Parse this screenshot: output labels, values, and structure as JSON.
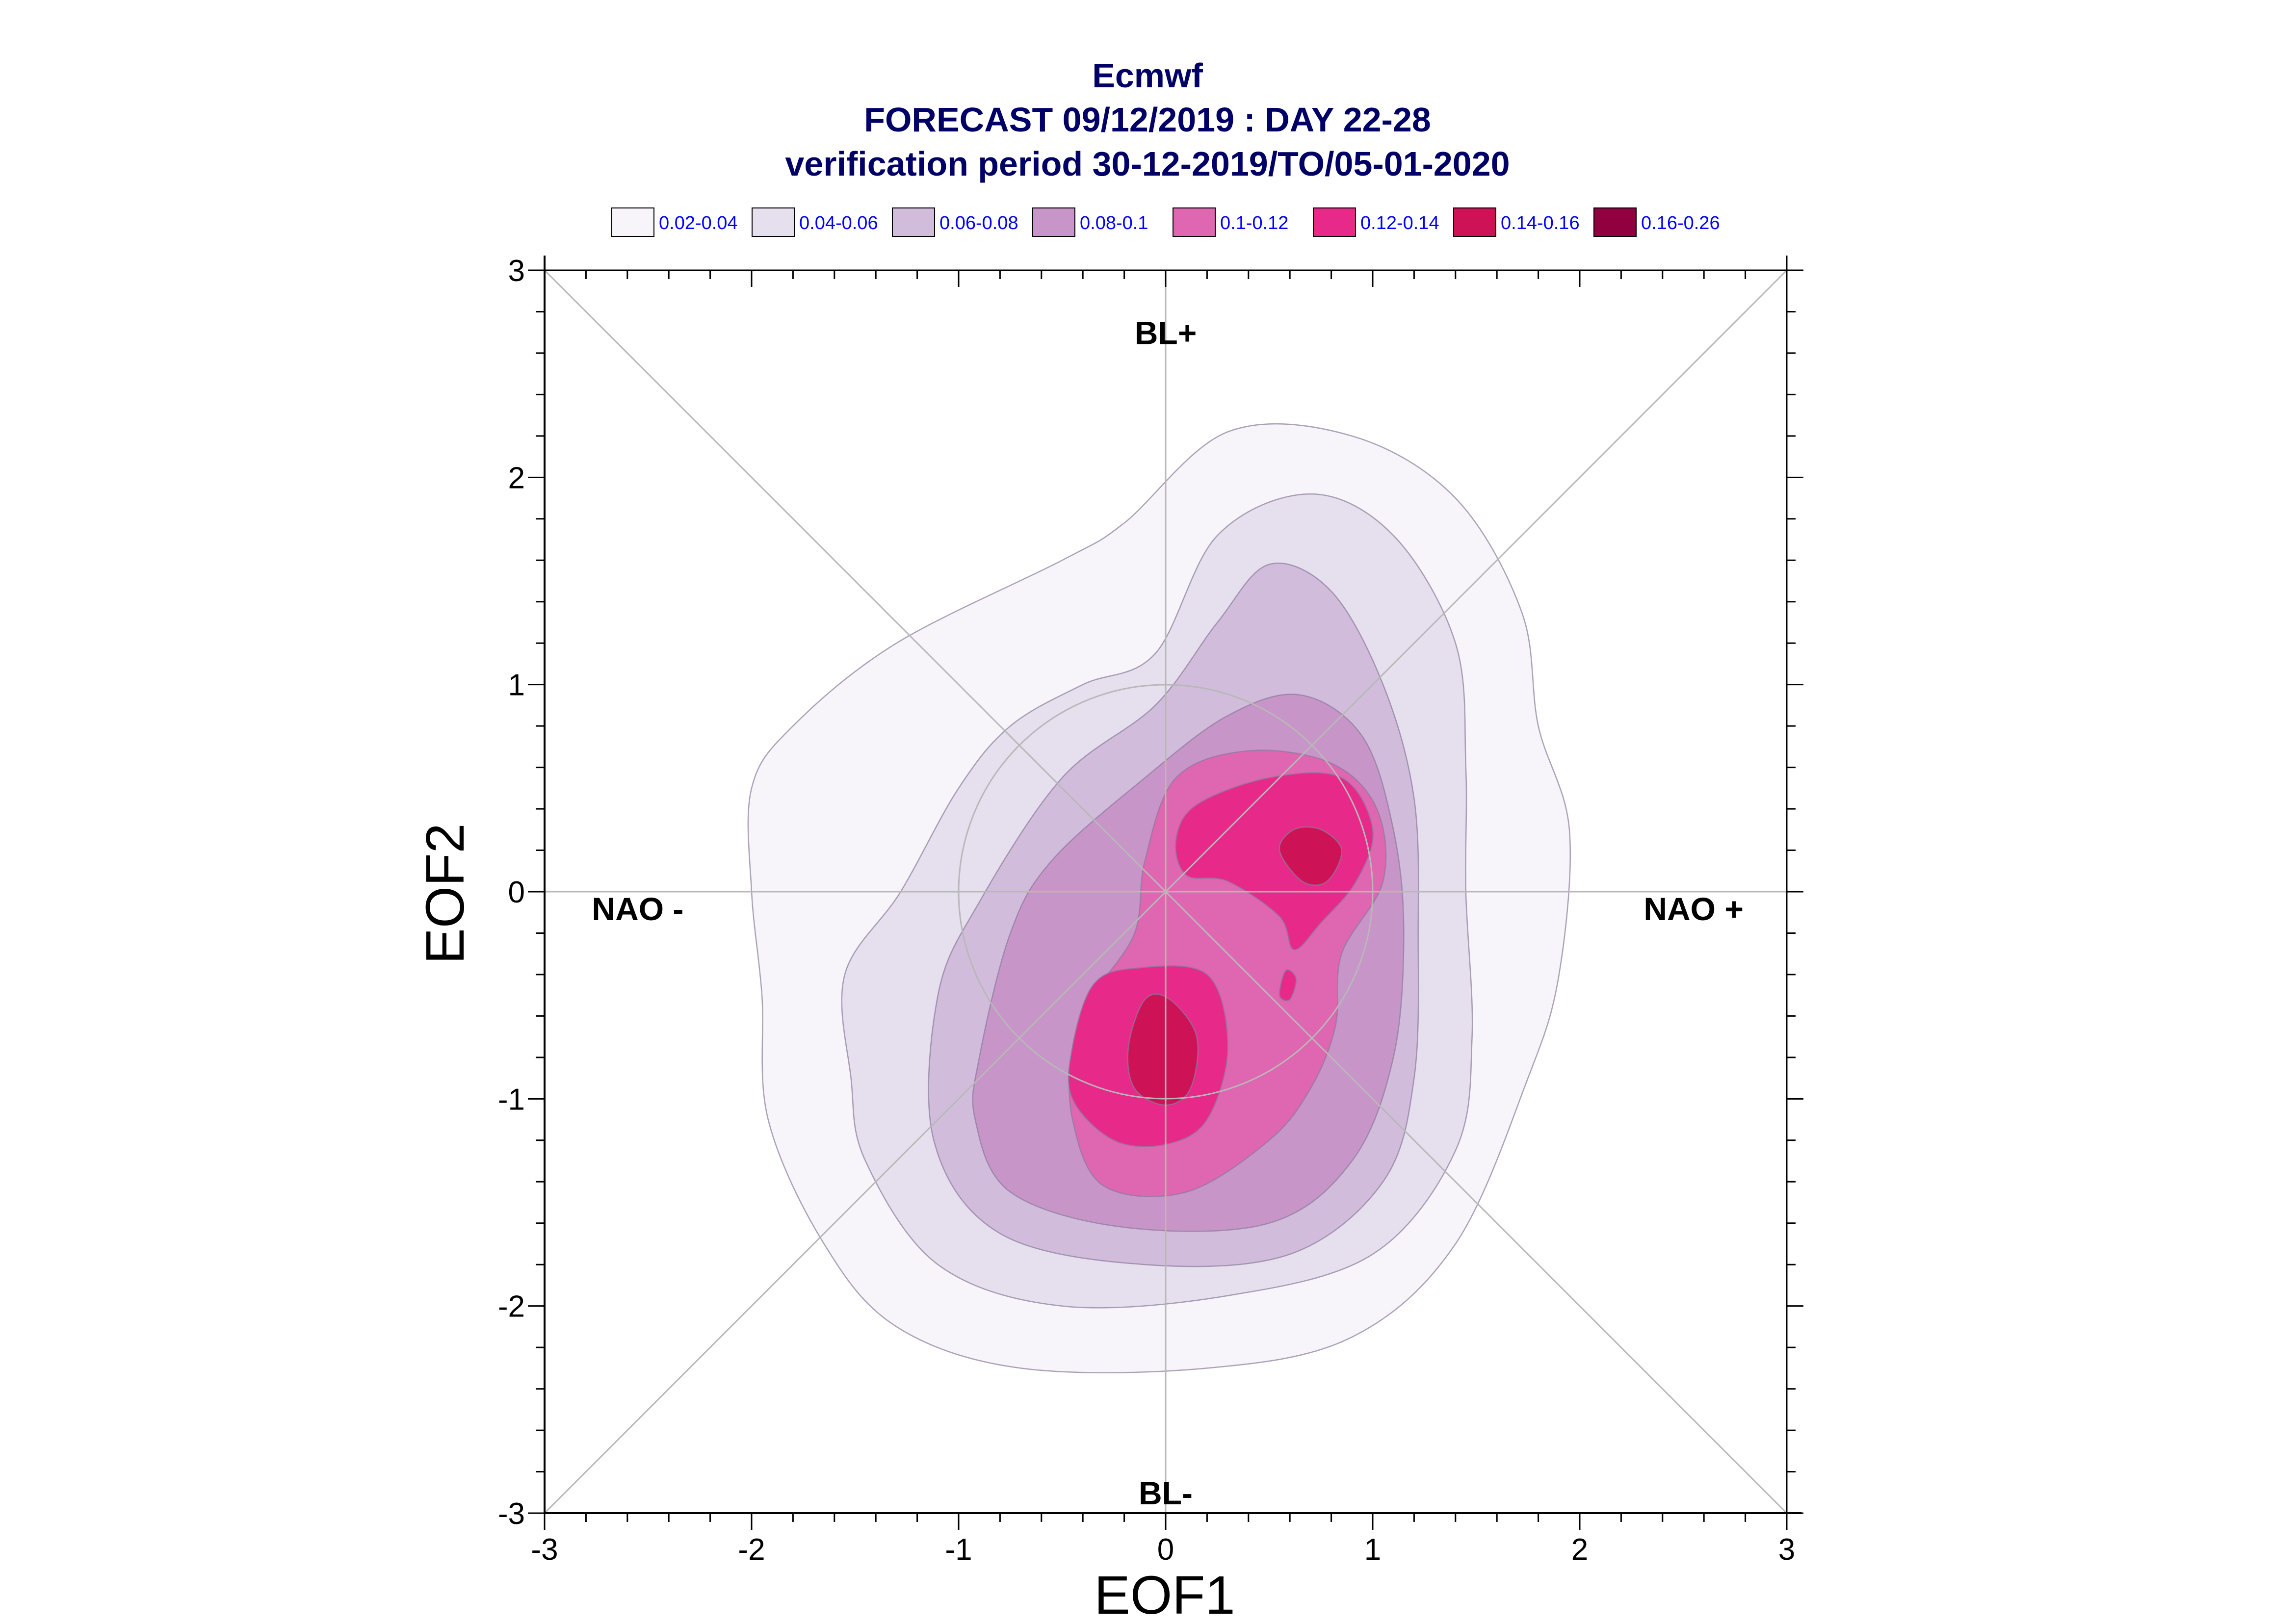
{
  "chart_data": {
    "type": "contour-density",
    "title": [
      "Ecmwf",
      "FORECAST 09/12/2019 : DAY 22-28",
      "verification period 30-12-2019/TO/05-01-2020"
    ],
    "xlabel": "EOF1",
    "ylabel": "EOF2",
    "xlim": [
      -3,
      3
    ],
    "ylim": [
      -3,
      3
    ],
    "xticks": [
      "-3",
      "-2",
      "-1",
      "0",
      "1",
      "2",
      "3"
    ],
    "yticks": [
      "3",
      "2",
      "1",
      "0",
      "-1",
      "-2",
      "-3"
    ],
    "legend_position": "top",
    "levels": [
      {
        "label": "0.02-0.04",
        "color": "#f7f5fa"
      },
      {
        "label": "0.04-0.06",
        "color": "#e6dfee"
      },
      {
        "label": "0.06-0.08",
        "color": "#d2bcdc"
      },
      {
        "label": "0.08-0.1",
        "color": "#c895c8"
      },
      {
        "label": "0.1-0.12",
        "color": "#df66b1"
      },
      {
        "label": "0.12-0.14",
        "color": "#e7298a"
      },
      {
        "label": "0.14-0.16",
        "color": "#ce1256"
      },
      {
        "label": "0.16-0.26",
        "color": "#91003f"
      }
    ],
    "regions": [
      {
        "label": "BL+",
        "x": 0,
        "y": 2.7
      },
      {
        "label": "BL-",
        "x": 0,
        "y": -2.9
      },
      {
        "label": "NAO -",
        "x": -2.55,
        "y": -0.08
      },
      {
        "label": "NAO +",
        "x": 2.55,
        "y": -0.08
      }
    ],
    "contours": [
      {
        "level": 0,
        "points": [
          [
            -2,
            0.5
          ],
          [
            -1.8,
            0.8
          ],
          [
            -1.3,
            1.2
          ],
          [
            -0.5,
            1.6
          ],
          [
            -0.2,
            1.78
          ],
          [
            0.3,
            2.22
          ],
          [
            0.9,
            2.2
          ],
          [
            1.4,
            1.9
          ],
          [
            1.72,
            1.35
          ],
          [
            1.8,
            0.8
          ],
          [
            1.95,
            0.3
          ],
          [
            1.9,
            -0.4
          ],
          [
            1.75,
            -0.9
          ],
          [
            1.4,
            -1.7
          ],
          [
            0.9,
            -2.15
          ],
          [
            0.2,
            -2.3
          ],
          [
            -0.7,
            -2.3
          ],
          [
            -1.3,
            -2.1
          ],
          [
            -1.65,
            -1.7
          ],
          [
            -1.92,
            -1.1
          ],
          [
            -1.95,
            -0.5
          ],
          [
            -2.0,
            0
          ]
        ]
      },
      {
        "level": 1,
        "points": [
          [
            -1.55,
            -0.4
          ],
          [
            -1.28,
            0
          ],
          [
            -1.0,
            0.5
          ],
          [
            -0.75,
            0.8
          ],
          [
            -0.4,
            1.0
          ],
          [
            -0.05,
            1.15
          ],
          [
            0.25,
            1.72
          ],
          [
            0.7,
            1.92
          ],
          [
            1.1,
            1.72
          ],
          [
            1.4,
            1.2
          ],
          [
            1.45,
            0.6
          ],
          [
            1.45,
            0
          ],
          [
            1.48,
            -0.7
          ],
          [
            1.4,
            -1.25
          ],
          [
            1.0,
            -1.75
          ],
          [
            0.3,
            -1.95
          ],
          [
            -0.5,
            -2.0
          ],
          [
            -1.1,
            -1.8
          ],
          [
            -1.45,
            -1.3
          ],
          [
            -1.52,
            -0.9
          ]
        ]
      },
      {
        "level": 2,
        "points": [
          [
            -1.1,
            -0.5
          ],
          [
            -0.9,
            -0.05
          ],
          [
            -0.5,
            0.55
          ],
          [
            -0.05,
            0.9
          ],
          [
            0.25,
            1.3
          ],
          [
            0.5,
            1.58
          ],
          [
            0.8,
            1.45
          ],
          [
            1.05,
            1.0
          ],
          [
            1.2,
            0.45
          ],
          [
            1.22,
            -0.2
          ],
          [
            1.2,
            -0.9
          ],
          [
            1.05,
            -1.4
          ],
          [
            0.6,
            -1.75
          ],
          [
            -0.1,
            -1.8
          ],
          [
            -0.8,
            -1.65
          ],
          [
            -1.12,
            -1.2
          ]
        ]
      },
      {
        "level": 3,
        "points": [
          [
            -0.9,
            -0.8
          ],
          [
            -0.75,
            -0.2
          ],
          [
            -0.55,
            0.15
          ],
          [
            -0.1,
            0.55
          ],
          [
            0.3,
            0.85
          ],
          [
            0.65,
            0.95
          ],
          [
            0.95,
            0.75
          ],
          [
            1.1,
            0.3
          ],
          [
            1.15,
            -0.2
          ],
          [
            1.1,
            -0.8
          ],
          [
            0.9,
            -1.3
          ],
          [
            0.5,
            -1.6
          ],
          [
            -0.2,
            -1.62
          ],
          [
            -0.75,
            -1.45
          ],
          [
            -0.92,
            -1.1
          ]
        ]
      },
      {
        "level": 4,
        "points": [
          [
            -0.35,
            -0.5
          ],
          [
            -0.15,
            -0.2
          ],
          [
            -0.1,
            0.15
          ],
          [
            0.05,
            0.55
          ],
          [
            0.4,
            0.68
          ],
          [
            0.8,
            0.62
          ],
          [
            1.02,
            0.4
          ],
          [
            1.05,
            0.05
          ],
          [
            0.85,
            -0.3
          ],
          [
            0.82,
            -0.65
          ],
          [
            0.7,
            -0.95
          ],
          [
            0.5,
            -1.2
          ],
          [
            0.1,
            -1.45
          ],
          [
            -0.3,
            -1.42
          ],
          [
            -0.45,
            -1.1
          ],
          [
            -0.45,
            -0.75
          ]
        ]
      },
      {
        "level": 5,
        "points": [
          [
            0.05,
            0.25
          ],
          [
            0.15,
            0.42
          ],
          [
            0.5,
            0.55
          ],
          [
            0.85,
            0.55
          ],
          [
            1.0,
            0.3
          ],
          [
            0.92,
            0.05
          ],
          [
            0.75,
            -0.15
          ],
          [
            0.62,
            -0.28
          ],
          [
            0.55,
            -0.12
          ],
          [
            0.3,
            0.05
          ],
          [
            0.1,
            0.08
          ]
        ]
      },
      {
        "level": 5,
        "points": [
          [
            -0.45,
            -0.75
          ],
          [
            -0.35,
            -0.45
          ],
          [
            -0.15,
            -0.37
          ],
          [
            0.2,
            -0.4
          ],
          [
            0.3,
            -0.75
          ],
          [
            0.2,
            -1.1
          ],
          [
            0.0,
            -1.22
          ],
          [
            -0.25,
            -1.2
          ],
          [
            -0.45,
            -1.0
          ]
        ]
      },
      {
        "level": 5,
        "points": [
          [
            0.55,
            -0.5
          ],
          [
            0.58,
            -0.38
          ],
          [
            0.63,
            -0.42
          ],
          [
            0.6,
            -0.52
          ]
        ]
      },
      {
        "level": 6,
        "points": [
          [
            0.55,
            0.2
          ],
          [
            0.62,
            0.3
          ],
          [
            0.75,
            0.3
          ],
          [
            0.85,
            0.2
          ],
          [
            0.78,
            0.05
          ],
          [
            0.66,
            0.05
          ]
        ]
      },
      {
        "level": 6,
        "points": [
          [
            -0.18,
            -0.75
          ],
          [
            -0.1,
            -0.52
          ],
          [
            0.02,
            -0.52
          ],
          [
            0.15,
            -0.7
          ],
          [
            0.12,
            -0.95
          ],
          [
            0.0,
            -1.03
          ],
          [
            -0.15,
            -0.95
          ]
        ]
      }
    ]
  }
}
